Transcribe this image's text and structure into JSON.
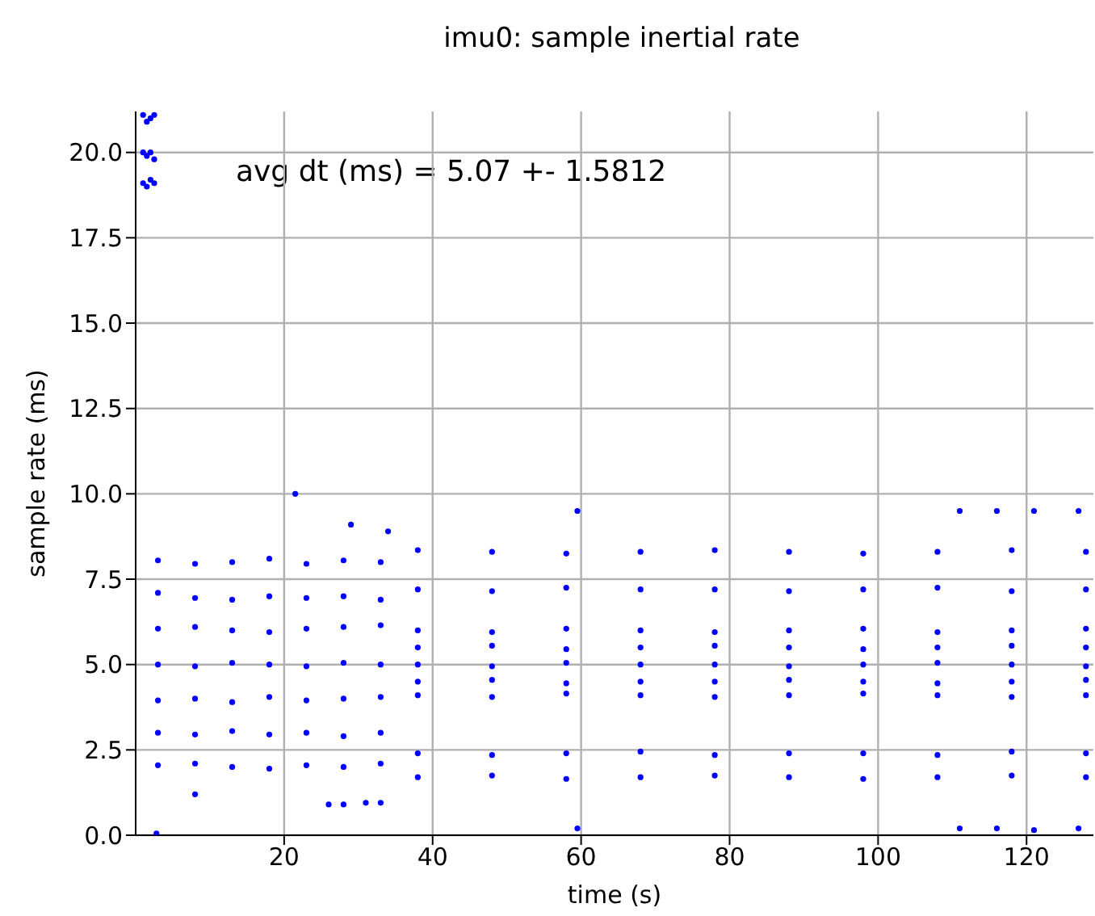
{
  "chart_data": {
    "type": "scatter",
    "title": "imu0: sample inertial rate",
    "xlabel": "time (s)",
    "ylabel": "sample rate (ms)",
    "annotations": [
      "avg dt (ms) = 5.07 +- 1.5812"
    ],
    "xlim": [
      0,
      129
    ],
    "xticks": [
      20,
      40,
      60,
      80,
      100,
      120
    ],
    "ylim": [
      0,
      21.2
    ],
    "yticks": [
      {
        "value": 0,
        "label": "0.0"
      },
      2.5,
      {
        "value": 5,
        "label": "5.0"
      },
      7.5,
      {
        "value": 10,
        "label": "10.0"
      },
      12.5,
      {
        "value": 15,
        "label": "15.0"
      },
      17.5,
      {
        "value": 20,
        "label": "20.0"
      }
    ],
    "grid": true,
    "marker": "circle",
    "series": [
      {
        "color": "#0000ff",
        "x": [
          1,
          1.5,
          2,
          2.5,
          1,
          1.5,
          2,
          2.5,
          1,
          1.5,
          2,
          2.5,
          2.8
        ],
        "values": [
          21.1,
          20.9,
          21.0,
          21.1,
          20.0,
          19.9,
          20.0,
          19.8,
          19.1,
          19.0,
          19.2,
          19.1,
          0.05
        ]
      },
      {
        "color": "#0000ff",
        "x": [
          3,
          8,
          13,
          18,
          23,
          28,
          33
        ],
        "values": [
          8.05,
          7.95,
          8.0,
          8.1,
          7.95,
          8.05,
          8.0
        ]
      },
      {
        "color": "#0000ff",
        "x": [
          3,
          8,
          13,
          18,
          23,
          28,
          33
        ],
        "values": [
          7.1,
          6.95,
          6.9,
          7.0,
          6.95,
          7.0,
          6.9
        ]
      },
      {
        "color": "#0000ff",
        "x": [
          3,
          8,
          13,
          18,
          23,
          28,
          33
        ],
        "values": [
          6.05,
          6.1,
          6.0,
          5.95,
          6.05,
          6.1,
          6.15
        ]
      },
      {
        "color": "#0000ff",
        "x": [
          3,
          8,
          13,
          18,
          23,
          28,
          33
        ],
        "values": [
          5.0,
          4.95,
          5.05,
          5.0,
          4.95,
          5.05,
          5.0
        ]
      },
      {
        "color": "#0000ff",
        "x": [
          3,
          8,
          13,
          18,
          23,
          28,
          33
        ],
        "values": [
          3.95,
          4.0,
          3.9,
          4.05,
          3.95,
          4.0,
          4.05
        ]
      },
      {
        "color": "#0000ff",
        "x": [
          3,
          8,
          13,
          18,
          23,
          28,
          33
        ],
        "values": [
          3.0,
          2.95,
          3.05,
          2.95,
          3.0,
          2.9,
          3.0
        ]
      },
      {
        "color": "#0000ff",
        "x": [
          3,
          8,
          13,
          18,
          23,
          28,
          33
        ],
        "values": [
          2.05,
          2.1,
          2.0,
          1.95,
          2.05,
          2.0,
          2.1
        ]
      },
      {
        "color": "#0000ff",
        "x": [
          38,
          48,
          58,
          68,
          78,
          88,
          98,
          108,
          118,
          128
        ],
        "values": [
          8.35,
          8.3,
          8.25,
          8.3,
          8.35,
          8.3,
          8.25,
          8.3,
          8.35,
          8.3
        ]
      },
      {
        "color": "#0000ff",
        "x": [
          38,
          48,
          58,
          68,
          78,
          88,
          98,
          108,
          118,
          128
        ],
        "values": [
          7.2,
          7.15,
          7.25,
          7.2,
          7.2,
          7.15,
          7.2,
          7.25,
          7.15,
          7.2
        ]
      },
      {
        "color": "#0000ff",
        "x": [
          38,
          48,
          58,
          68,
          78,
          88,
          98,
          108,
          118,
          128
        ],
        "values": [
          6.0,
          5.95,
          6.05,
          6.0,
          5.95,
          6.0,
          6.05,
          5.95,
          6.0,
          6.05
        ]
      },
      {
        "color": "#0000ff",
        "x": [
          38,
          48,
          58,
          68,
          78,
          88,
          98,
          108,
          118,
          128
        ],
        "values": [
          5.5,
          5.55,
          5.45,
          5.5,
          5.55,
          5.5,
          5.45,
          5.5,
          5.55,
          5.5
        ]
      },
      {
        "color": "#0000ff",
        "x": [
          38,
          48,
          58,
          68,
          78,
          88,
          98,
          108,
          118,
          128
        ],
        "values": [
          5.0,
          4.95,
          5.05,
          5.0,
          5.0,
          4.95,
          5.0,
          5.05,
          5.0,
          4.95
        ]
      },
      {
        "color": "#0000ff",
        "x": [
          38,
          48,
          58,
          68,
          78,
          88,
          98,
          108,
          118,
          128
        ],
        "values": [
          4.5,
          4.55,
          4.45,
          4.5,
          4.5,
          4.55,
          4.5,
          4.45,
          4.5,
          4.55
        ]
      },
      {
        "color": "#0000ff",
        "x": [
          38,
          48,
          58,
          68,
          78,
          88,
          98,
          108,
          118,
          128
        ],
        "values": [
          4.1,
          4.05,
          4.15,
          4.1,
          4.05,
          4.1,
          4.15,
          4.1,
          4.05,
          4.1
        ]
      },
      {
        "color": "#0000ff",
        "x": [
          38,
          48,
          58,
          68,
          78,
          88,
          98,
          108,
          118,
          128
        ],
        "values": [
          2.4,
          2.35,
          2.4,
          2.45,
          2.35,
          2.4,
          2.4,
          2.35,
          2.45,
          2.4
        ]
      },
      {
        "color": "#0000ff",
        "x": [
          38,
          48,
          58,
          68,
          78,
          88,
          98,
          108,
          118,
          128
        ],
        "values": [
          1.7,
          1.75,
          1.65,
          1.7,
          1.75,
          1.7,
          1.65,
          1.7,
          1.75,
          1.7
        ]
      },
      {
        "color": "#0000ff",
        "x": [
          21.5,
          29,
          34,
          59.5,
          111,
          116,
          121,
          127,
          8,
          26,
          28,
          31,
          33,
          59.5,
          111,
          116,
          121,
          127
        ],
        "values": [
          10.0,
          9.1,
          8.9,
          9.5,
          9.5,
          9.5,
          9.5,
          9.5,
          1.2,
          0.9,
          0.9,
          0.95,
          0.95,
          0.2,
          0.2,
          0.2,
          0.15,
          0.2
        ]
      }
    ]
  }
}
